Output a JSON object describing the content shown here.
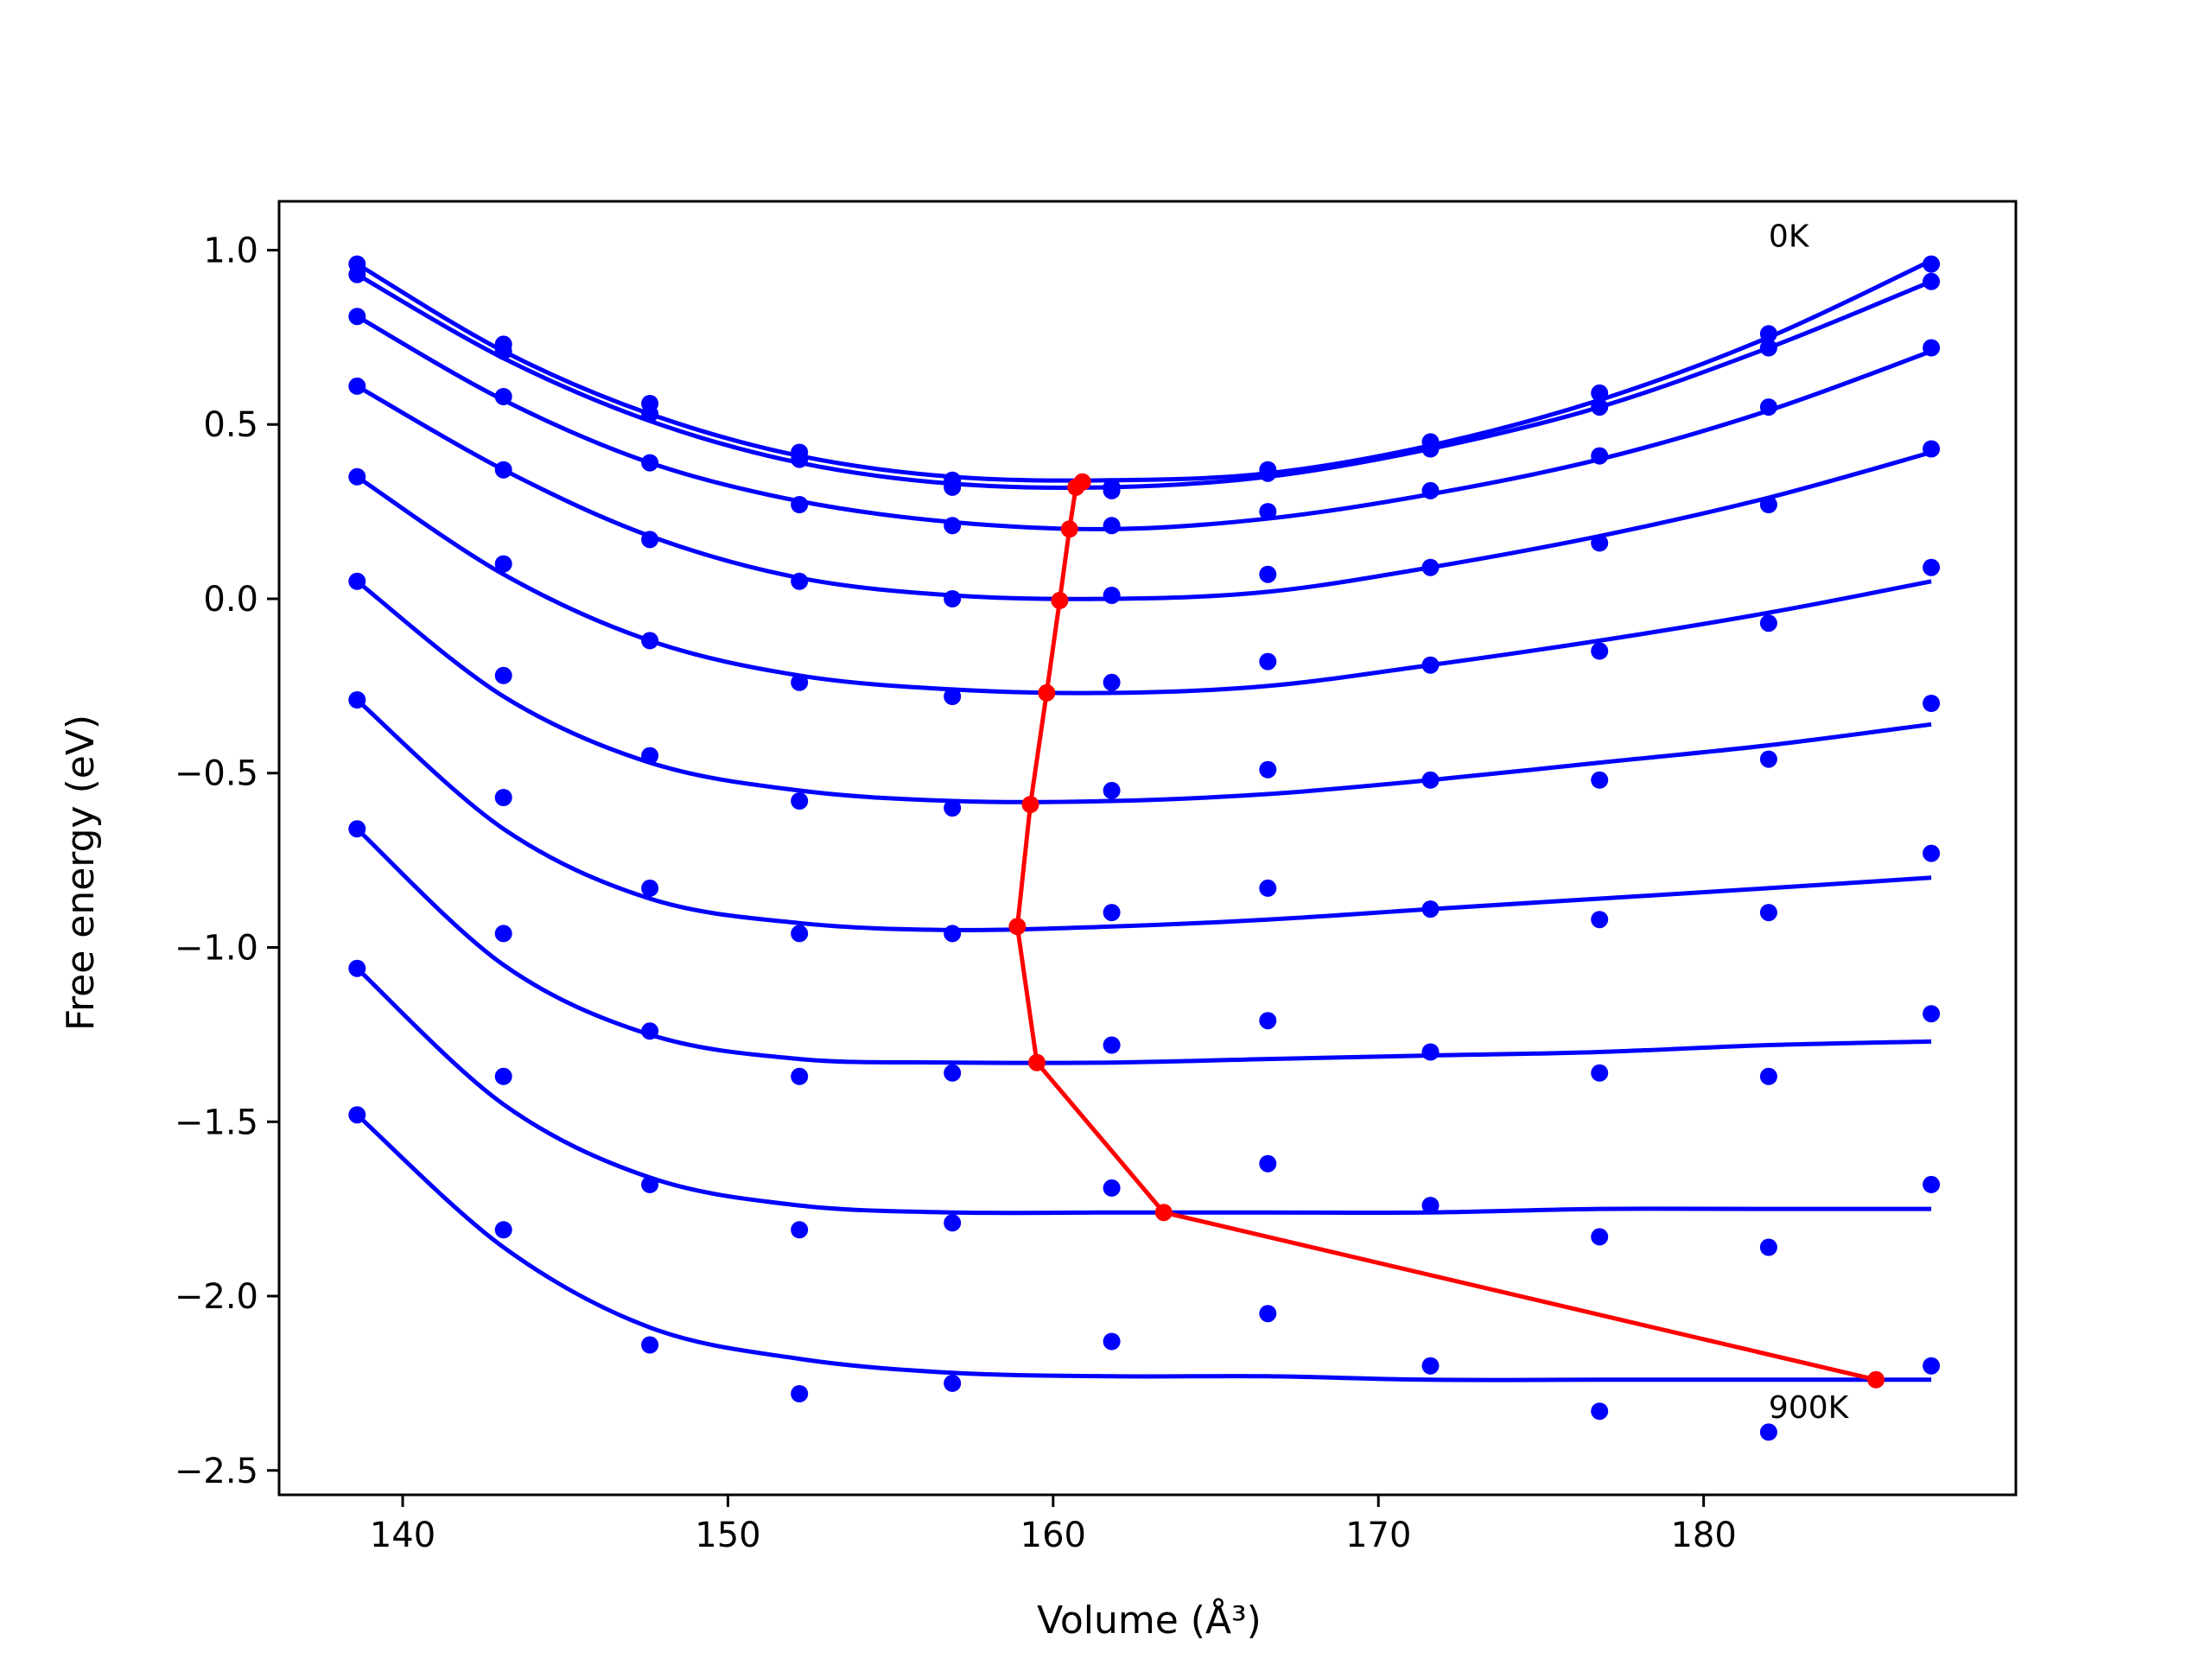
{
  "chart_data": {
    "type": "scatter",
    "xlabel": "Volume (Å³)",
    "ylabel": "Free energy (eV)",
    "xlim": [
      136.2,
      189.6
    ],
    "ylim": [
      -2.57,
      1.14
    ],
    "xticks": [
      140,
      150,
      160,
      170,
      180
    ],
    "yticks": [
      1.0,
      0.5,
      0.0,
      -0.5,
      -1.0,
      -1.5,
      -2.0,
      -2.5
    ],
    "xtick_labels": [
      "140",
      "150",
      "160",
      "170",
      "180"
    ],
    "ytick_labels": [
      "1.0",
      "0.5",
      "0.0",
      "−0.5",
      "−1.0",
      "−1.5",
      "−2.0",
      "−2.5"
    ],
    "grid": false,
    "annotations": [
      {
        "text": "0K",
        "x": 182.0,
        "y": 1.01
      },
      {
        "text": "900K",
        "x": 182.0,
        "y": -2.35
      }
    ],
    "colors": {
      "series": "#0000ff",
      "minimum_path": "#ff0000",
      "frame": "#000000"
    },
    "x": [
      138.6,
      143.1,
      147.6,
      152.2,
      156.9,
      161.8,
      166.6,
      171.6,
      176.8,
      182.0,
      187.0
    ],
    "series": [
      {
        "points": [
          0.96,
          0.73,
          0.56,
          0.42,
          0.34,
          0.32,
          0.37,
          0.45,
          0.59,
          0.76,
          0.96
        ],
        "fit": [
          0.96,
          0.71,
          0.53,
          0.41,
          0.35,
          0.34,
          0.36,
          0.44,
          0.57,
          0.75,
          0.97
        ]
      },
      {
        "points": [
          0.93,
          0.71,
          0.53,
          0.4,
          0.32,
          0.31,
          0.36,
          0.43,
          0.55,
          0.72,
          0.91
        ],
        "fit": [
          0.93,
          0.69,
          0.51,
          0.39,
          0.33,
          0.32,
          0.35,
          0.43,
          0.55,
          0.72,
          0.91
        ]
      },
      {
        "points": [
          0.81,
          0.58,
          0.39,
          0.27,
          0.21,
          0.21,
          0.25,
          0.31,
          0.41,
          0.55,
          0.72
        ],
        "fit": [
          0.81,
          0.57,
          0.39,
          0.28,
          0.22,
          0.2,
          0.23,
          0.3,
          0.4,
          0.54,
          0.71
        ]
      },
      {
        "points": [
          0.61,
          0.37,
          0.17,
          0.05,
          0.0,
          0.01,
          0.07,
          0.09,
          0.16,
          0.27,
          0.43
        ],
        "fit": [
          0.61,
          0.37,
          0.18,
          0.06,
          0.01,
          0.0,
          0.02,
          0.09,
          0.18,
          0.29,
          0.42
        ]
      },
      {
        "points": [
          0.35,
          0.1,
          -0.12,
          -0.24,
          -0.28,
          -0.24,
          -0.18,
          -0.19,
          -0.15,
          -0.07,
          0.09
        ],
        "fit": [
          0.35,
          0.07,
          -0.12,
          -0.22,
          -0.26,
          -0.27,
          -0.25,
          -0.19,
          -0.12,
          -0.04,
          0.05
        ]
      },
      {
        "points": [
          0.05,
          -0.22,
          -0.45,
          -0.58,
          -0.6,
          -0.55,
          -0.49,
          -0.52,
          -0.52,
          -0.46,
          -0.3
        ],
        "fit": [
          0.05,
          -0.28,
          -0.47,
          -0.55,
          -0.58,
          -0.58,
          -0.56,
          -0.52,
          -0.47,
          -0.42,
          -0.36
        ]
      },
      {
        "points": [
          -0.29,
          -0.57,
          -0.83,
          -0.96,
          -0.96,
          -0.9,
          -0.83,
          -0.89,
          -0.92,
          -0.9,
          -0.73
        ],
        "fit": [
          -0.29,
          -0.66,
          -0.86,
          -0.93,
          -0.95,
          -0.94,
          -0.92,
          -0.89,
          -0.86,
          -0.83,
          -0.8
        ]
      },
      {
        "points": [
          -0.66,
          -0.96,
          -1.24,
          -1.37,
          -1.36,
          -1.28,
          -1.21,
          -1.3,
          -1.36,
          -1.37,
          -1.19
        ],
        "fit": [
          -0.66,
          -1.05,
          -1.25,
          -1.32,
          -1.33,
          -1.33,
          -1.32,
          -1.31,
          -1.3,
          -1.28,
          -1.27
        ]
      },
      {
        "points": [
          -1.06,
          -1.37,
          -1.68,
          -1.81,
          -1.79,
          -1.69,
          -1.62,
          -1.74,
          -1.83,
          -1.86,
          -1.68
        ],
        "fit": [
          -1.06,
          -1.45,
          -1.66,
          -1.74,
          -1.76,
          -1.76,
          -1.76,
          -1.76,
          -1.75,
          -1.75,
          -1.75
        ]
      },
      {
        "points": [
          -1.48,
          -1.81,
          -2.14,
          -2.28,
          -2.25,
          -2.13,
          -2.05,
          -2.2,
          -2.33,
          -2.39,
          -2.2
        ],
        "fit": [
          -1.48,
          -1.86,
          -2.09,
          -2.18,
          -2.22,
          -2.23,
          -2.23,
          -2.24,
          -2.24,
          -2.24,
          -2.24
        ]
      }
    ],
    "minimum_path": {
      "x": [
        160.9,
        160.7,
        160.5,
        160.2,
        159.8,
        159.3,
        158.9,
        159.5,
        163.4,
        185.3
      ],
      "y": [
        0.335,
        0.32,
        0.2,
        -0.005,
        -0.27,
        -0.59,
        -0.94,
        -1.33,
        -1.76,
        -2.24
      ]
    }
  }
}
